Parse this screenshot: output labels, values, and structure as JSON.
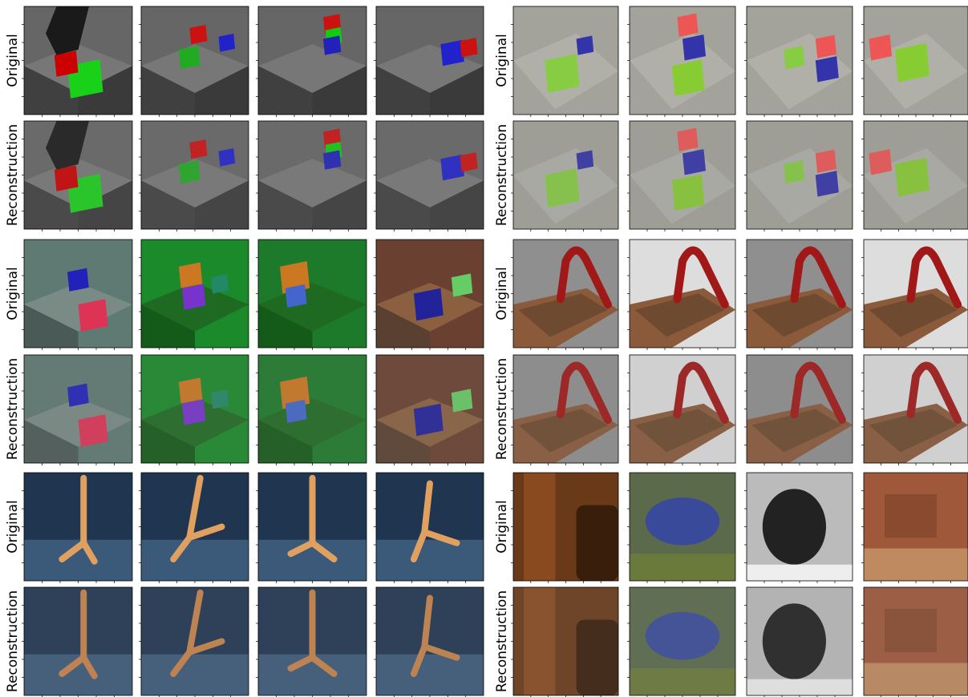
{
  "groups": [
    {
      "rows": [
        {
          "label": "Original"
        },
        {
          "label": "Reconstruction"
        }
      ]
    },
    {
      "rows": [
        {
          "label": "Original"
        },
        {
          "label": "Reconstruction"
        }
      ]
    },
    {
      "rows": [
        {
          "label": "Original"
        },
        {
          "label": "Reconstruction"
        }
      ]
    },
    {
      "rows": [
        {
          "label": "Original"
        },
        {
          "label": "Reconstruction"
        }
      ]
    },
    {
      "rows": [
        {
          "label": "Original"
        },
        {
          "label": "Reconstruction"
        }
      ]
    },
    {
      "rows": [
        {
          "label": "Original"
        },
        {
          "label": "Reconstruction"
        }
      ]
    }
  ]
}
